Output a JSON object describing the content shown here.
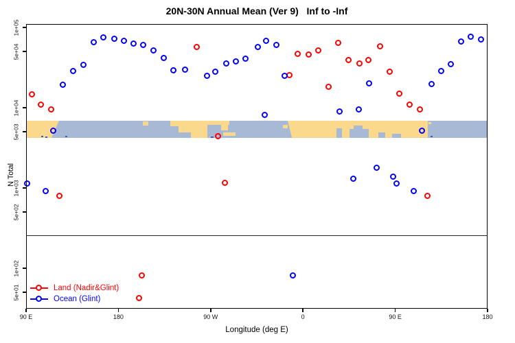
{
  "chart_data": {
    "type": "scatter",
    "title": "20N-30N Annual Mean (Ver 9)   Inf to -Inf",
    "xlabel": "Longitude (deg E)",
    "ylabel": "N Total",
    "y_scale": "log10",
    "ylim": [
      31,
      110000
    ],
    "grid": "off",
    "legend_position": "bottom-left",
    "x_axis": {
      "description": "Longitude wrapping eastward: starts at 90 E, crosses dateline and Greenwich, ends at 180 (450 deg total span)",
      "ticks": [
        {
          "label": "90 E",
          "deg": 0
        },
        {
          "label": "180",
          "deg": 90
        },
        {
          "label": "90 W",
          "deg": 180
        },
        {
          "label": "0",
          "deg": 270
        },
        {
          "label": "90 E",
          "deg": 360
        },
        {
          "label": "180",
          "deg": 450
        }
      ]
    },
    "y_axis": {
      "ticks": [
        {
          "label": "1e+05",
          "value": 100000
        },
        {
          "label": "5e+04",
          "value": 50000
        },
        {
          "label": "1e+04",
          "value": 10000
        },
        {
          "label": "5e+03",
          "value": 5000
        },
        {
          "label": "1e+03",
          "value": 1000
        },
        {
          "label": "5e+02",
          "value": 500
        },
        {
          "label": "1e+02",
          "value": 100
        },
        {
          "label": "5e+01",
          "value": 50
        }
      ]
    },
    "separator_line_value": 257,
    "map_band": {
      "description": "20N-30N latitude world-map strip drawn across the plot",
      "value_top": 6900,
      "value_bottom": 4200,
      "ocean_color": "#A8B9D6",
      "land_color": "#FAD98C",
      "island_color": "#3B5FC0"
    },
    "point_format": "[deg_east_of_axis_start, N_total]",
    "series": [
      {
        "name": "Land (Nadir&Glint)",
        "color": "#FF0000",
        "marker": "open-circle",
        "points": [
          [
            5.8,
            14500
          ],
          [
            14.7,
            10700
          ],
          [
            24.8,
            9400
          ],
          [
            32.6,
            790
          ],
          [
            110.7,
            42
          ],
          [
            113.2,
            80
          ],
          [
            166.5,
            56000
          ],
          [
            187.3,
            4400
          ],
          [
            194,
            1150
          ],
          [
            256.9,
            25000
          ],
          [
            265.2,
            46500
          ],
          [
            275.9,
            45500
          ],
          [
            285.5,
            51000
          ],
          [
            295.5,
            18000
          ],
          [
            304.9,
            64000
          ],
          [
            314.9,
            38500
          ],
          [
            325.7,
            35500
          ],
          [
            334,
            39000
          ],
          [
            345.5,
            57000
          ],
          [
            354.7,
            28000
          ],
          [
            364.1,
            14700
          ],
          [
            374.1,
            10700
          ],
          [
            384.2,
            9400
          ],
          [
            392,
            790
          ]
        ]
      },
      {
        "name": "Ocean (Glint)",
        "color": "#0000FF",
        "marker": "open-circle",
        "points": [
          [
            1.3,
            1120
          ],
          [
            19.2,
            900
          ],
          [
            27,
            5150
          ],
          [
            36,
            19000
          ],
          [
            46,
            28500
          ],
          [
            56,
            34000
          ],
          [
            66.1,
            64500
          ],
          [
            75.5,
            74500
          ],
          [
            86.2,
            71000
          ],
          [
            95.5,
            67500
          ],
          [
            105.1,
            62000
          ],
          [
            114.7,
            60000
          ],
          [
            124.8,
            51000
          ],
          [
            134.6,
            41000
          ],
          [
            144.2,
            29000
          ],
          [
            155.4,
            29500
          ],
          [
            176.6,
            24500
          ],
          [
            185,
            27500
          ],
          [
            195.5,
            35500
          ],
          [
            205.1,
            37000
          ],
          [
            214.5,
            40500
          ],
          [
            226.3,
            56000
          ],
          [
            233,
            8000
          ],
          [
            234.6,
            67500
          ],
          [
            244.2,
            60000
          ],
          [
            252.4,
            24500
          ],
          [
            260.5,
            80
          ],
          [
            306,
            8800
          ],
          [
            319.4,
            1300
          ],
          [
            325,
            9400
          ],
          [
            335,
            20000
          ],
          [
            342.2,
            1770
          ],
          [
            358.5,
            1360
          ],
          [
            361.4,
            1130
          ],
          [
            378.2,
            900
          ],
          [
            386.4,
            5150
          ],
          [
            395.7,
            19500
          ],
          [
            405.3,
            28500
          ],
          [
            414.9,
            34500
          ],
          [
            424.7,
            66500
          ],
          [
            434.3,
            76000
          ],
          [
            443.9,
            70000
          ]
        ]
      }
    ]
  },
  "legend": {
    "items": [
      {
        "label": "Land (Nadir&Glint)",
        "color": "#FF0000"
      },
      {
        "label": "Ocean (Glint)",
        "color": "#0000FF"
      }
    ]
  }
}
